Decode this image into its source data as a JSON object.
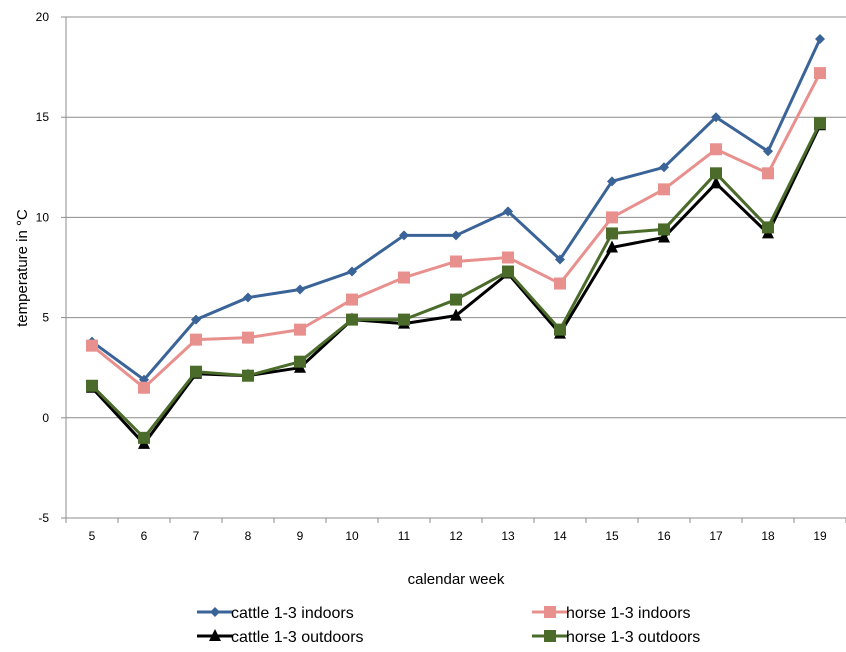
{
  "chart_data": {
    "type": "line",
    "xlabel": "calendar week",
    "ylabel": "temperature in °C",
    "x": [
      5,
      6,
      7,
      8,
      9,
      10,
      11,
      12,
      13,
      14,
      15,
      16,
      17,
      18,
      19
    ],
    "ylim": [
      -5,
      20
    ],
    "yticks": [
      -5,
      0,
      5,
      10,
      15,
      20
    ],
    "grid": true,
    "legend_position": "bottom",
    "series": [
      {
        "name": "cattle 1-3 indoors",
        "color": "#3a6498",
        "marker": "diamond",
        "values": [
          3.8,
          1.9,
          4.9,
          6.0,
          6.4,
          7.3,
          9.1,
          9.1,
          10.3,
          7.9,
          11.8,
          12.5,
          15.0,
          13.3,
          18.9
        ]
      },
      {
        "name": "horse 1-3 indoors",
        "color": "#e8908e",
        "marker": "square",
        "values": [
          3.6,
          1.5,
          3.9,
          4.0,
          4.4,
          5.9,
          7.0,
          7.8,
          8.0,
          6.7,
          10.0,
          11.4,
          13.4,
          12.2,
          17.2
        ]
      },
      {
        "name": "cattle 1-3 outdoors",
        "color": "#000000",
        "marker": "triangle",
        "values": [
          1.5,
          -1.3,
          2.2,
          2.1,
          2.5,
          4.9,
          4.7,
          5.1,
          7.2,
          4.2,
          8.5,
          9.0,
          11.7,
          9.2,
          14.6
        ]
      },
      {
        "name": "horse 1-3 outdoors",
        "color": "#4a6b2a",
        "marker": "square",
        "values": [
          1.6,
          -1.0,
          2.3,
          2.1,
          2.8,
          4.9,
          4.9,
          5.9,
          7.3,
          4.4,
          9.2,
          9.4,
          12.2,
          9.5,
          14.7
        ]
      }
    ]
  }
}
